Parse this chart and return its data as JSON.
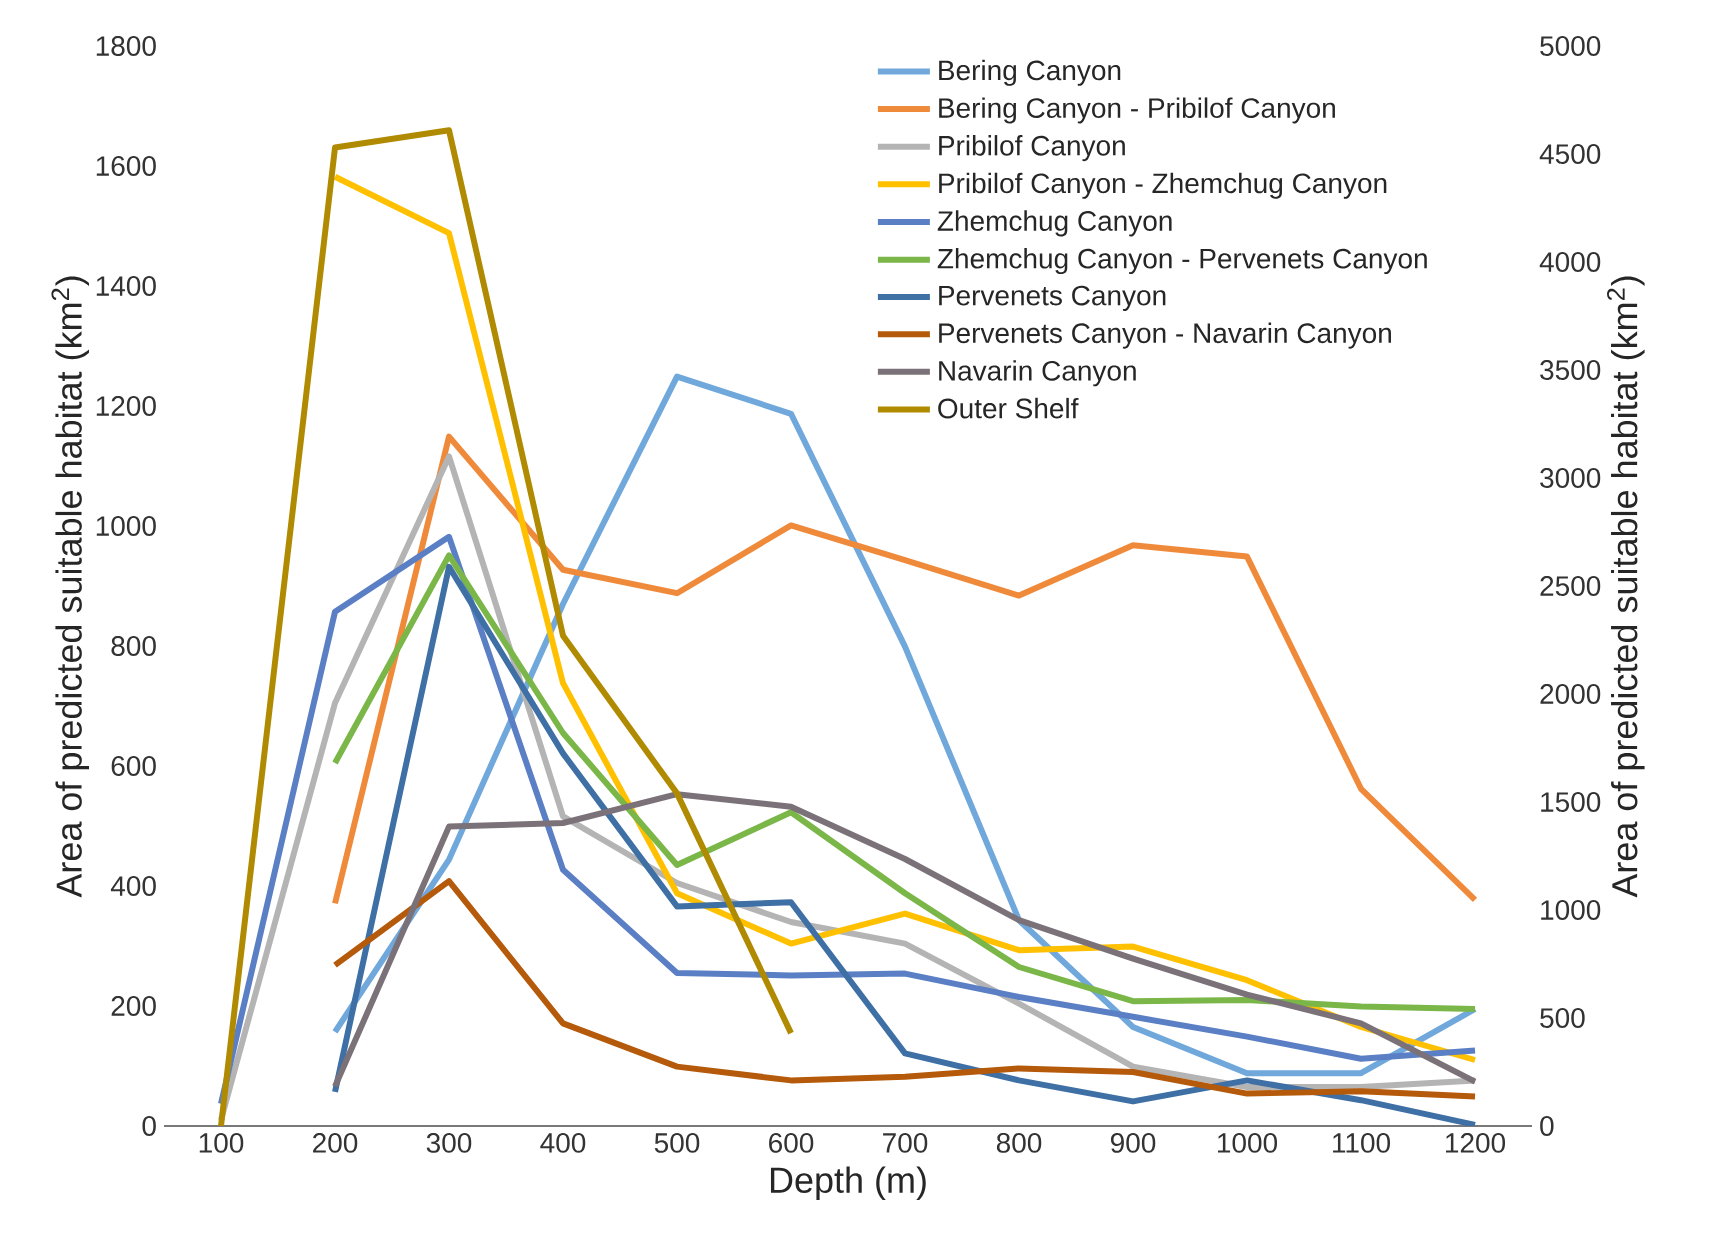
{
  "chart_data": {
    "type": "line",
    "xlabel": "Depth (m)",
    "ylabel": "Area of predicted suitable habitat (km$^{2}$)",
    "y2label": "Area of predicted suitable habitat (km$^{2}$)",
    "x": [
      100,
      200,
      300,
      400,
      500,
      600,
      700,
      800,
      900,
      1000,
      1100,
      1200
    ],
    "xlim": [
      50,
      1250
    ],
    "xticks": [
      100,
      200,
      300,
      400,
      500,
      600,
      700,
      800,
      900,
      1000,
      1100,
      1200
    ],
    "ylim": [
      0,
      1800
    ],
    "yticks": [
      0,
      200,
      400,
      600,
      800,
      1000,
      1200,
      1400,
      1600,
      1800
    ],
    "y2lim": [
      0,
      5000
    ],
    "y2ticks": [
      0,
      500,
      1000,
      1500,
      2000,
      2500,
      3000,
      3500,
      4000,
      4500,
      5000
    ],
    "legend": "top right",
    "grid": false,
    "marker": "none",
    "line_style": "solid",
    "series": [
      {
        "name": "Bering Canyon",
        "color": "#70a8dc",
        "values": [
          null,
          157,
          444,
          870,
          1249,
          1187,
          799,
          343,
          165,
          88,
          88,
          195
        ]
      },
      {
        "name": "Bering Canyon - Pribilof Canyon",
        "color": "#f08a3b",
        "values": [
          null,
          371,
          1149,
          927,
          888,
          1001,
          943,
          884,
          968,
          949,
          562,
          377
        ]
      },
      {
        "name": "Pribilof Canyon",
        "color": "#b4b4b4",
        "values": [
          10,
          705,
          1116,
          516,
          405,
          340,
          304,
          204,
          99,
          65,
          65,
          76
        ]
      },
      {
        "name": "Pribilof Canyon - Zhemchug Canyon",
        "color": "#ffc000",
        "values": [
          null,
          1582,
          1488,
          738,
          388,
          304,
          354,
          293,
          299,
          243,
          165,
          110
        ]
      },
      {
        "name": "Zhemchug Canyon",
        "color": "#5b7fc4",
        "values": [
          37,
          857,
          982,
          427,
          255,
          251,
          254,
          215,
          182,
          149,
          112,
          126
        ]
      },
      {
        "name": "Zhemchug Canyon - Pervenets Canyon",
        "color": "#7ab648",
        "values": [
          null,
          605,
          951,
          655,
          435,
          523,
          388,
          265,
          208,
          210,
          199,
          195
        ]
      },
      {
        "name": "Pervenets Canyon",
        "color": "#3e6fa5",
        "values": [
          null,
          57,
          932,
          621,
          366,
          373,
          121,
          76,
          41,
          76,
          43,
          2
        ]
      },
      {
        "name": "Pervenets Canyon - Navarin Canyon",
        "color": "#b45a0a",
        "values": [
          null,
          268,
          408,
          171,
          99,
          76,
          82,
          96,
          90,
          54,
          58,
          49
        ]
      },
      {
        "name": "Navarin Canyon",
        "color": "#7a7278",
        "values": [
          null,
          66,
          499,
          505,
          553,
          532,
          445,
          343,
          279,
          219,
          171,
          74
        ]
      },
      {
        "name": "Outer Shelf",
        "color": "#b08a00",
        "axis": "y2",
        "values": [
          0,
          4530,
          4610,
          2270,
          1540,
          430,
          null,
          null,
          null,
          null,
          null,
          null
        ]
      }
    ]
  }
}
